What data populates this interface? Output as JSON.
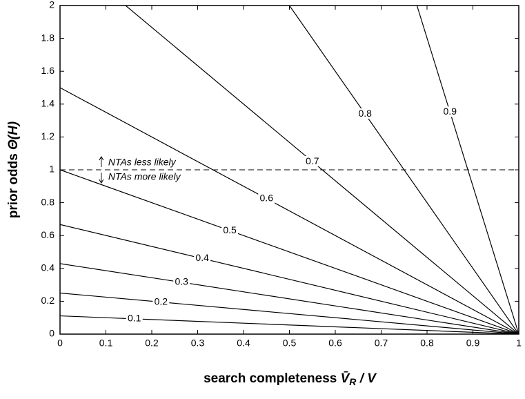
{
  "chart_data": {
    "type": "line",
    "x_label": {
      "text": "search completeness ",
      "symbol": "V̄",
      "subscript": "R",
      "suffix": " / V"
    },
    "y_label": {
      "text": "prior odds ",
      "symbol": "Θ(H)"
    },
    "xlim": [
      0,
      1
    ],
    "ylim": [
      0,
      2
    ],
    "xticks": [
      0,
      0.1,
      0.2,
      0.3,
      0.4,
      0.5,
      0.6,
      0.7,
      0.8,
      0.9,
      1
    ],
    "yticks": [
      0,
      0.2,
      0.4,
      0.6,
      0.8,
      1,
      1.2,
      1.4,
      1.6,
      1.8,
      2
    ],
    "reference_line": {
      "y": 1,
      "style": "dashed"
    },
    "annotations": [
      "NTAs less likely",
      "NTAs more likely"
    ],
    "color": "#000000",
    "series": [
      {
        "name": "0.1",
        "x": [
          0,
          1
        ],
        "values": [
          0.111,
          0
        ]
      },
      {
        "name": "0.2",
        "x": [
          0,
          1
        ],
        "values": [
          0.25,
          0
        ]
      },
      {
        "name": "0.3",
        "x": [
          0,
          1
        ],
        "values": [
          0.429,
          0
        ]
      },
      {
        "name": "0.4",
        "x": [
          0,
          1
        ],
        "values": [
          0.667,
          0
        ]
      },
      {
        "name": "0.5",
        "x": [
          0,
          1
        ],
        "values": [
          1,
          0
        ]
      },
      {
        "name": "0.6",
        "x": [
          0,
          1
        ],
        "values": [
          1.5,
          0
        ]
      },
      {
        "name": "0.7",
        "x": [
          0.143,
          1
        ],
        "values": [
          2,
          0
        ]
      },
      {
        "name": "0.8",
        "x": [
          0.5,
          1
        ],
        "values": [
          2,
          0
        ]
      },
      {
        "name": "0.9",
        "x": [
          0.778,
          1
        ],
        "values": [
          2,
          0
        ]
      }
    ]
  }
}
